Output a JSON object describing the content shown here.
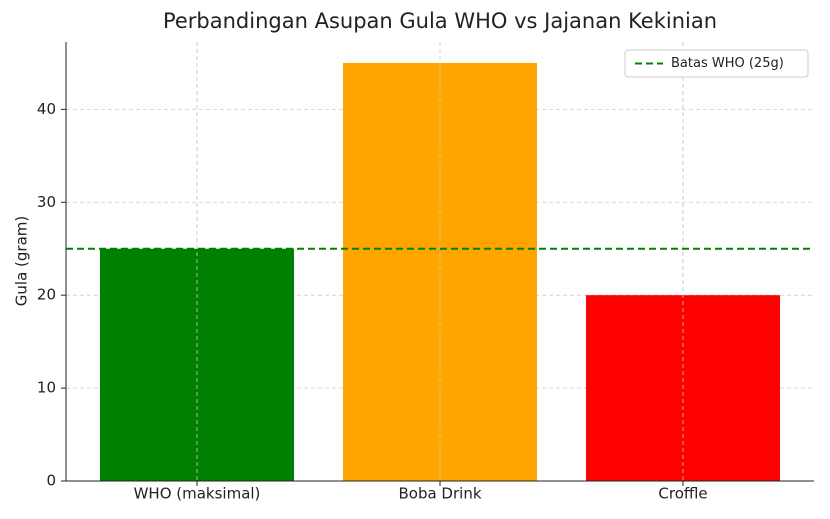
{
  "chart_data": {
    "type": "bar",
    "title": "Perbandingan Asupan Gula WHO vs Jajanan Kekinian",
    "y_label": "Gula (gram)",
    "categories": [
      "WHO (maksimal)",
      "Boba Drink",
      "Croffle"
    ],
    "values": [
      25,
      45,
      20
    ],
    "colors": [
      "#008000",
      "#ffa500",
      "#ff0000"
    ],
    "ylim": [
      0,
      47.25
    ],
    "yticks": [
      0,
      10,
      20,
      30,
      40
    ],
    "grid": true,
    "reference_line": {
      "name": "Batas WHO (25g)",
      "value": 25,
      "color": "#008000",
      "style": "dashed"
    },
    "legend": "upper right"
  }
}
